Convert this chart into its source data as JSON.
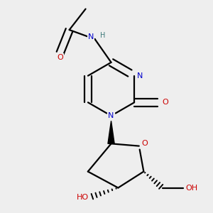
{
  "bg_color": "#eeeeee",
  "atom_colors": {
    "C": "#000000",
    "N": "#0000cc",
    "O": "#cc0000",
    "H": "#3d7a7a"
  },
  "line_color": "#000000",
  "line_width": 1.6,
  "figsize": [
    3.0,
    3.0
  ],
  "dpi": 100,
  "xlim": [
    0.1,
    0.9
  ],
  "ylim": [
    0.05,
    0.95
  ]
}
